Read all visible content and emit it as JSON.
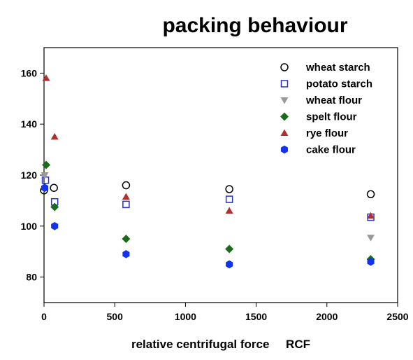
{
  "chart_data": {
    "type": "scatter",
    "title": "packing behaviour",
    "xlabel": "relative centrifugal force     RCF",
    "ylabel": "",
    "xlim": [
      0,
      2500
    ],
    "ylim": [
      70,
      170
    ],
    "x_ticks": [
      0,
      500,
      1000,
      1500,
      2000,
      2500
    ],
    "y_ticks": [
      80,
      100,
      120,
      140,
      160
    ],
    "grid": false,
    "legend_position": "top-right",
    "series": [
      {
        "name": "wheat starch",
        "marker": "circle-open",
        "color": "#000000",
        "points": [
          {
            "x": 0,
            "y": 114
          },
          {
            "x": 70,
            "y": 115
          },
          {
            "x": 580,
            "y": 116
          },
          {
            "x": 1310,
            "y": 114.5
          },
          {
            "x": 2310,
            "y": 112.5
          }
        ]
      },
      {
        "name": "potato starch",
        "marker": "square-open",
        "color": "#2233cc",
        "points": [
          {
            "x": 10,
            "y": 118
          },
          {
            "x": 75,
            "y": 109.5
          },
          {
            "x": 580,
            "y": 108.5
          },
          {
            "x": 1310,
            "y": 110.5
          },
          {
            "x": 2310,
            "y": 103.5
          }
        ]
      },
      {
        "name": "wheat flour",
        "marker": "triangle-down",
        "color": "#999999",
        "points": [
          {
            "x": 5,
            "y": 120
          },
          {
            "x": 2310,
            "y": 95.5
          }
        ]
      },
      {
        "name": "spelt flour",
        "marker": "diamond",
        "color": "#1a6b1a",
        "points": [
          {
            "x": 15,
            "y": 124
          },
          {
            "x": 75,
            "y": 107.5
          },
          {
            "x": 580,
            "y": 95
          },
          {
            "x": 1310,
            "y": 91
          },
          {
            "x": 2310,
            "y": 87
          }
        ]
      },
      {
        "name": "rye flour",
        "marker": "triangle-up",
        "color": "#b03030",
        "points": [
          {
            "x": 15,
            "y": 158
          },
          {
            "x": 75,
            "y": 135
          },
          {
            "x": 580,
            "y": 111.5
          },
          {
            "x": 1310,
            "y": 106
          },
          {
            "x": 2310,
            "y": 104
          }
        ]
      },
      {
        "name": "cake flour",
        "marker": "hexagon",
        "color": "#1133ee",
        "points": [
          {
            "x": 5,
            "y": 115
          },
          {
            "x": 75,
            "y": 100
          },
          {
            "x": 580,
            "y": 89
          },
          {
            "x": 1310,
            "y": 85
          },
          {
            "x": 2310,
            "y": 86
          }
        ]
      }
    ]
  }
}
